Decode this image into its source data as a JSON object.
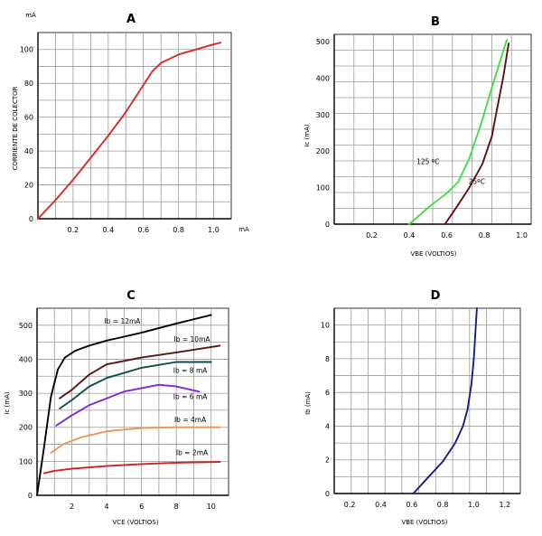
{
  "chart_data": [
    {
      "type": "line",
      "title": "A",
      "ylabel": "CORRIENTE DE COLECTOR",
      "xunit": "mA",
      "yunit": "mA",
      "xlim": [
        0,
        1.1
      ],
      "ylim": [
        0,
        110
      ],
      "xticks": [
        0.2,
        0.4,
        0.6,
        0.8,
        1.0
      ],
      "xtick_labels": [
        "0.2",
        "0.4",
        "0.6",
        "0.8",
        "1.0"
      ],
      "yticks": [
        0,
        20,
        40,
        60,
        80,
        100
      ],
      "ytick_labels": [
        "0",
        "20",
        "40",
        "60",
        "80",
        "100"
      ],
      "grid": true,
      "series": [
        {
          "color": "#d42a2a",
          "x": [
            0,
            0.1,
            0.2,
            0.3,
            0.4,
            0.5,
            0.6,
            0.65,
            0.7,
            0.8,
            0.9,
            1.0,
            1.04
          ],
          "y": [
            0,
            11,
            23,
            36,
            49,
            63,
            79,
            87,
            92,
            97,
            100,
            103,
            104
          ]
        }
      ]
    },
    {
      "type": "line",
      "title": "B",
      "xlabel": "VBE (VOLTIOS)",
      "ylabel": "Ic (mA)",
      "xlim": [
        0,
        1.05
      ],
      "ylim": [
        0,
        520
      ],
      "xticks": [
        0.2,
        0.4,
        0.6,
        0.8,
        1.0
      ],
      "xtick_labels": [
        "0.2",
        "0.4",
        "0.6",
        "0.8",
        "1.0"
      ],
      "yticks": [
        0,
        100,
        200,
        300,
        400,
        500
      ],
      "ytick_labels": [
        "0",
        "100",
        "200",
        "300",
        "400",
        "500"
      ],
      "grid": true,
      "annotations": [
        {
          "text": "125 ºC",
          "x": 0.5,
          "y": 165
        },
        {
          "text": "25ºC",
          "x": 0.76,
          "y": 110
        }
      ],
      "series": [
        {
          "name": "125 ºC",
          "color": "#44dd44",
          "x": [
            0.4,
            0.5,
            0.6,
            0.66,
            0.72,
            0.78,
            0.85,
            0.92
          ],
          "y": [
            0,
            45,
            85,
            115,
            180,
            270,
            390,
            505
          ]
        },
        {
          "name": "25ºC",
          "color": "#5a0f12",
          "x": [
            0.59,
            0.65,
            0.72,
            0.79,
            0.84,
            0.87,
            0.9,
            0.93
          ],
          "y": [
            0,
            45,
            100,
            165,
            240,
            320,
            400,
            495
          ]
        }
      ]
    },
    {
      "type": "line",
      "title": "C",
      "xlabel": "VCE (VOLTIOS)",
      "ylabel": "Ic (mA)",
      "xlim": [
        0,
        11
      ],
      "ylim": [
        0,
        550
      ],
      "xticks": [
        2,
        4,
        6,
        8,
        10
      ],
      "xtick_labels": [
        "2",
        "4",
        "6",
        "8",
        "10"
      ],
      "yticks": [
        0,
        100,
        200,
        300,
        400,
        500
      ],
      "ytick_labels": [
        "0",
        "100",
        "200",
        "300",
        "400",
        "500"
      ],
      "grid": true,
      "annotations": [
        {
          "text": "Ib = 12mA",
          "x": 4.9,
          "y": 505
        },
        {
          "text": "Ib = 10mA",
          "x": 8.9,
          "y": 452
        },
        {
          "text": "Ib = 8 mA",
          "x": 8.8,
          "y": 360
        },
        {
          "text": "Ib = 6 mA",
          "x": 8.8,
          "y": 283
        },
        {
          "text": "Ib = 4mA",
          "x": 8.8,
          "y": 215
        },
        {
          "text": "Ib = 2mA",
          "x": 8.9,
          "y": 118
        }
      ],
      "series": [
        {
          "name": "Ib = 12mA",
          "color": "#000000",
          "x": [
            0,
            0.4,
            0.8,
            1.2,
            1.6,
            2.2,
            3,
            4,
            6,
            8,
            10
          ],
          "y": [
            0,
            140,
            290,
            370,
            405,
            425,
            440,
            455,
            478,
            505,
            530
          ]
        },
        {
          "name": "Ib = 10mA",
          "color": "#5a1414",
          "x": [
            1.3,
            2,
            3,
            4,
            6,
            8,
            10.5
          ],
          "y": [
            285,
            310,
            355,
            385,
            405,
            420,
            440
          ]
        },
        {
          "name": "Ib = 8 mA",
          "color": "#0e4a4a",
          "x": [
            1.3,
            2,
            3,
            4,
            6,
            8,
            10
          ],
          "y": [
            255,
            280,
            320,
            345,
            375,
            392,
            392
          ]
        },
        {
          "name": "Ib = 6 mA",
          "color": "#7a2ad8",
          "x": [
            1.1,
            2,
            3,
            4,
            5,
            6,
            7,
            8,
            9.3
          ],
          "y": [
            205,
            235,
            265,
            285,
            305,
            315,
            325,
            320,
            305
          ]
        },
        {
          "name": "Ib = 4mA",
          "color": "#e8945a",
          "x": [
            0.8,
            1.5,
            2.5,
            4,
            6,
            8,
            10.5
          ],
          "y": [
            125,
            150,
            170,
            188,
            198,
            200,
            200
          ]
        },
        {
          "name": "Ib = 2mA",
          "color": "#cc2222",
          "x": [
            0.4,
            1,
            2,
            4,
            6,
            8,
            10.5
          ],
          "y": [
            65,
            72,
            78,
            86,
            92,
            96,
            98
          ]
        }
      ]
    },
    {
      "type": "line",
      "title": "D",
      "xlabel": "VBE (VOLTIOS)",
      "ylabel": "Ib (mA)",
      "xlim": [
        0.1,
        1.3
      ],
      "ylim": [
        0,
        11
      ],
      "xticks": [
        0.2,
        0.4,
        0.6,
        0.8,
        1.0,
        1.2
      ],
      "xtick_labels": [
        "0.2",
        "0.4",
        "0.6",
        "0.8",
        "1.0",
        "1.2"
      ],
      "yticks": [
        0,
        2,
        4,
        6,
        8,
        10
      ],
      "ytick_labels": [
        "0",
        "2",
        "4",
        "6",
        "8",
        "10"
      ],
      "grid": true,
      "series": [
        {
          "color": "#1a1a8a",
          "x": [
            0.61,
            0.7,
            0.8,
            0.88,
            0.93,
            0.96,
            0.985,
            1.0,
            1.01,
            1.02
          ],
          "y": [
            0,
            0.9,
            1.9,
            3.0,
            4.0,
            5.0,
            6.5,
            8.0,
            9.5,
            11
          ]
        }
      ]
    }
  ]
}
